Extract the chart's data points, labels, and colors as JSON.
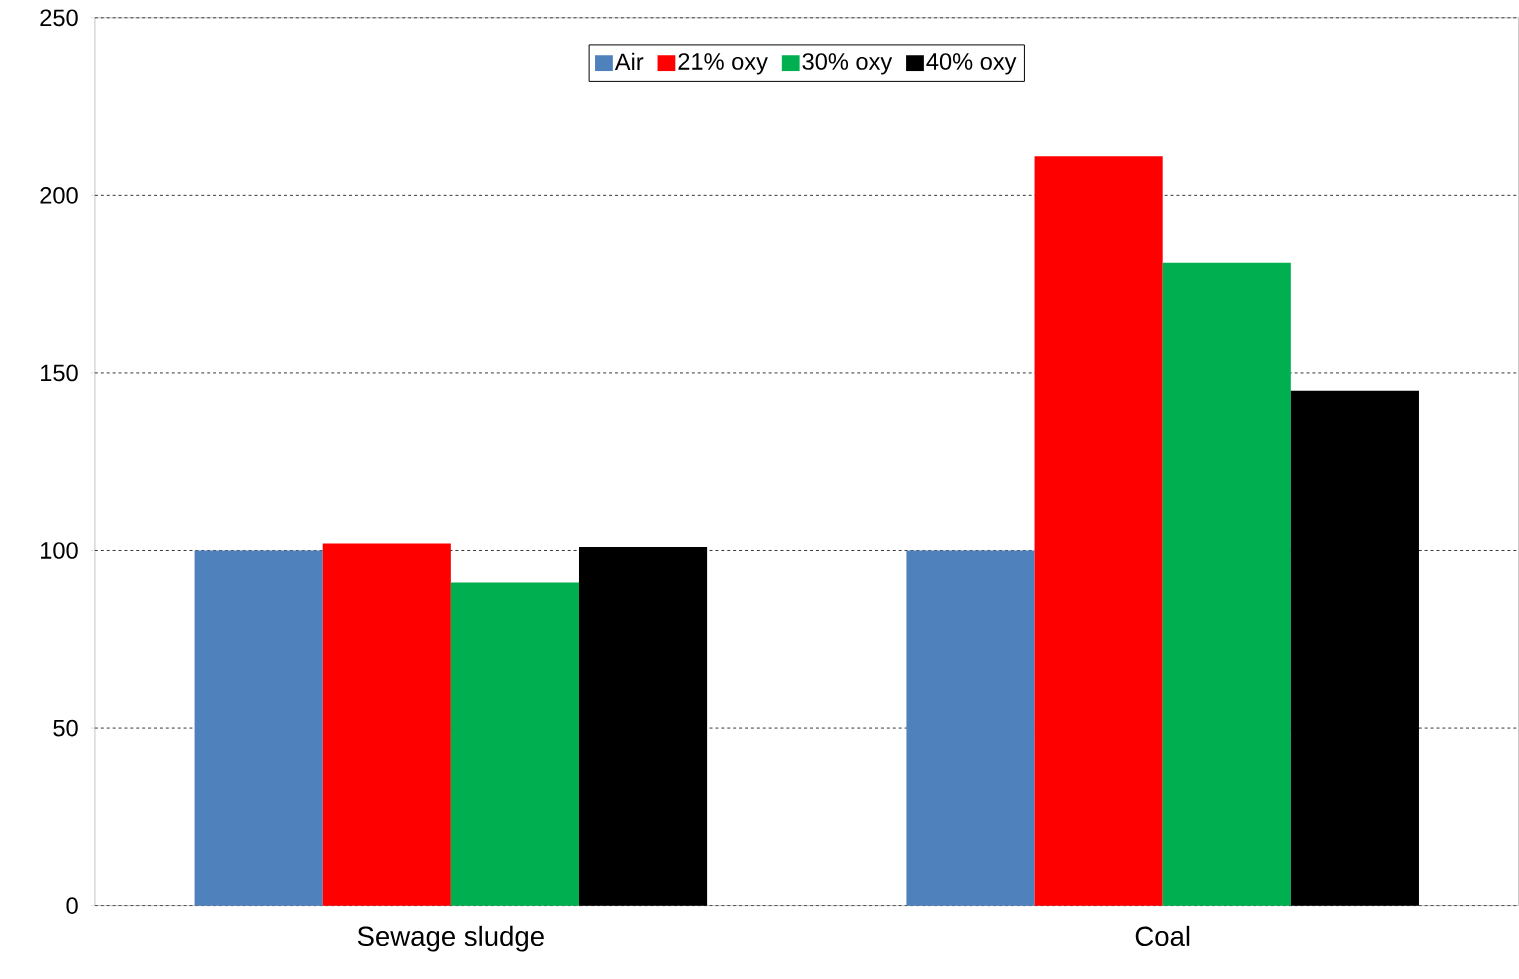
{
  "chart_data": {
    "type": "bar",
    "categories": [
      "Sewage sludge",
      "Coal"
    ],
    "series": [
      {
        "name": "Air",
        "color": "#4f81bd",
        "values": [
          100,
          100
        ]
      },
      {
        "name": "21% oxy",
        "color": "#ff0000",
        "values": [
          102,
          211
        ]
      },
      {
        "name": "30% oxy",
        "color": "#00b050",
        "values": [
          91,
          181
        ]
      },
      {
        "name": "40% oxy",
        "color": "#000000",
        "values": [
          101,
          145
        ]
      }
    ],
    "ylim": [
      0,
      250
    ],
    "yticks": [
      0,
      50,
      100,
      150,
      200,
      250
    ],
    "grid": "y",
    "legend": "top"
  }
}
